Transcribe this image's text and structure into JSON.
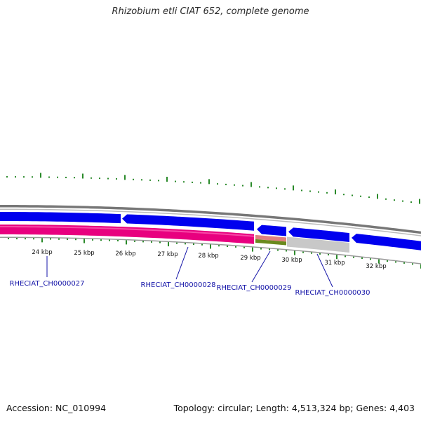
{
  "title": "Rhizobium etli CIAT 652, complete genome",
  "accession_text": "Accession: NC_010994",
  "summary_text": "Topology: circular; Length: 4,513,324 bp; Genes: 4,403",
  "colors": {
    "forward_cds": "#0000ee",
    "reverse_pink": "#e8007f",
    "highlight_salmon": "#e08080",
    "highlight_green": "#6a8a1e",
    "gray_feature": "#c8c8c8",
    "gc_ticks": "#2a8a2a",
    "label": "#1414a8"
  },
  "scale_labels": [
    "24 kbp",
    "25 kbp",
    "26 kbp",
    "27 kbp",
    "28 kbp",
    "29 kbp",
    "30 kbp",
    "31 kbp",
    "32 kbp"
  ],
  "gene_labels": [
    "RHECIAT_CH0000027",
    "RHECIAT_CH0000028",
    "RHECIAT_CH0000029",
    "RHECIAT_CH0000030"
  ]
}
